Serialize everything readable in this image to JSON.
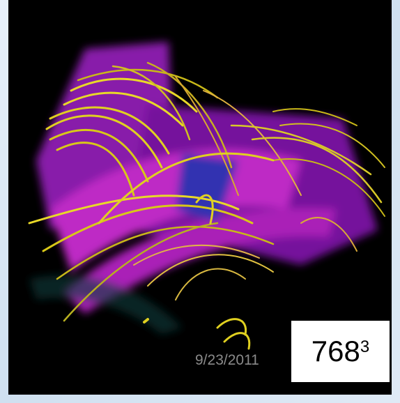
{
  "date": "9/23/2011",
  "resolution": {
    "base": "768",
    "exponent": "3"
  }
}
